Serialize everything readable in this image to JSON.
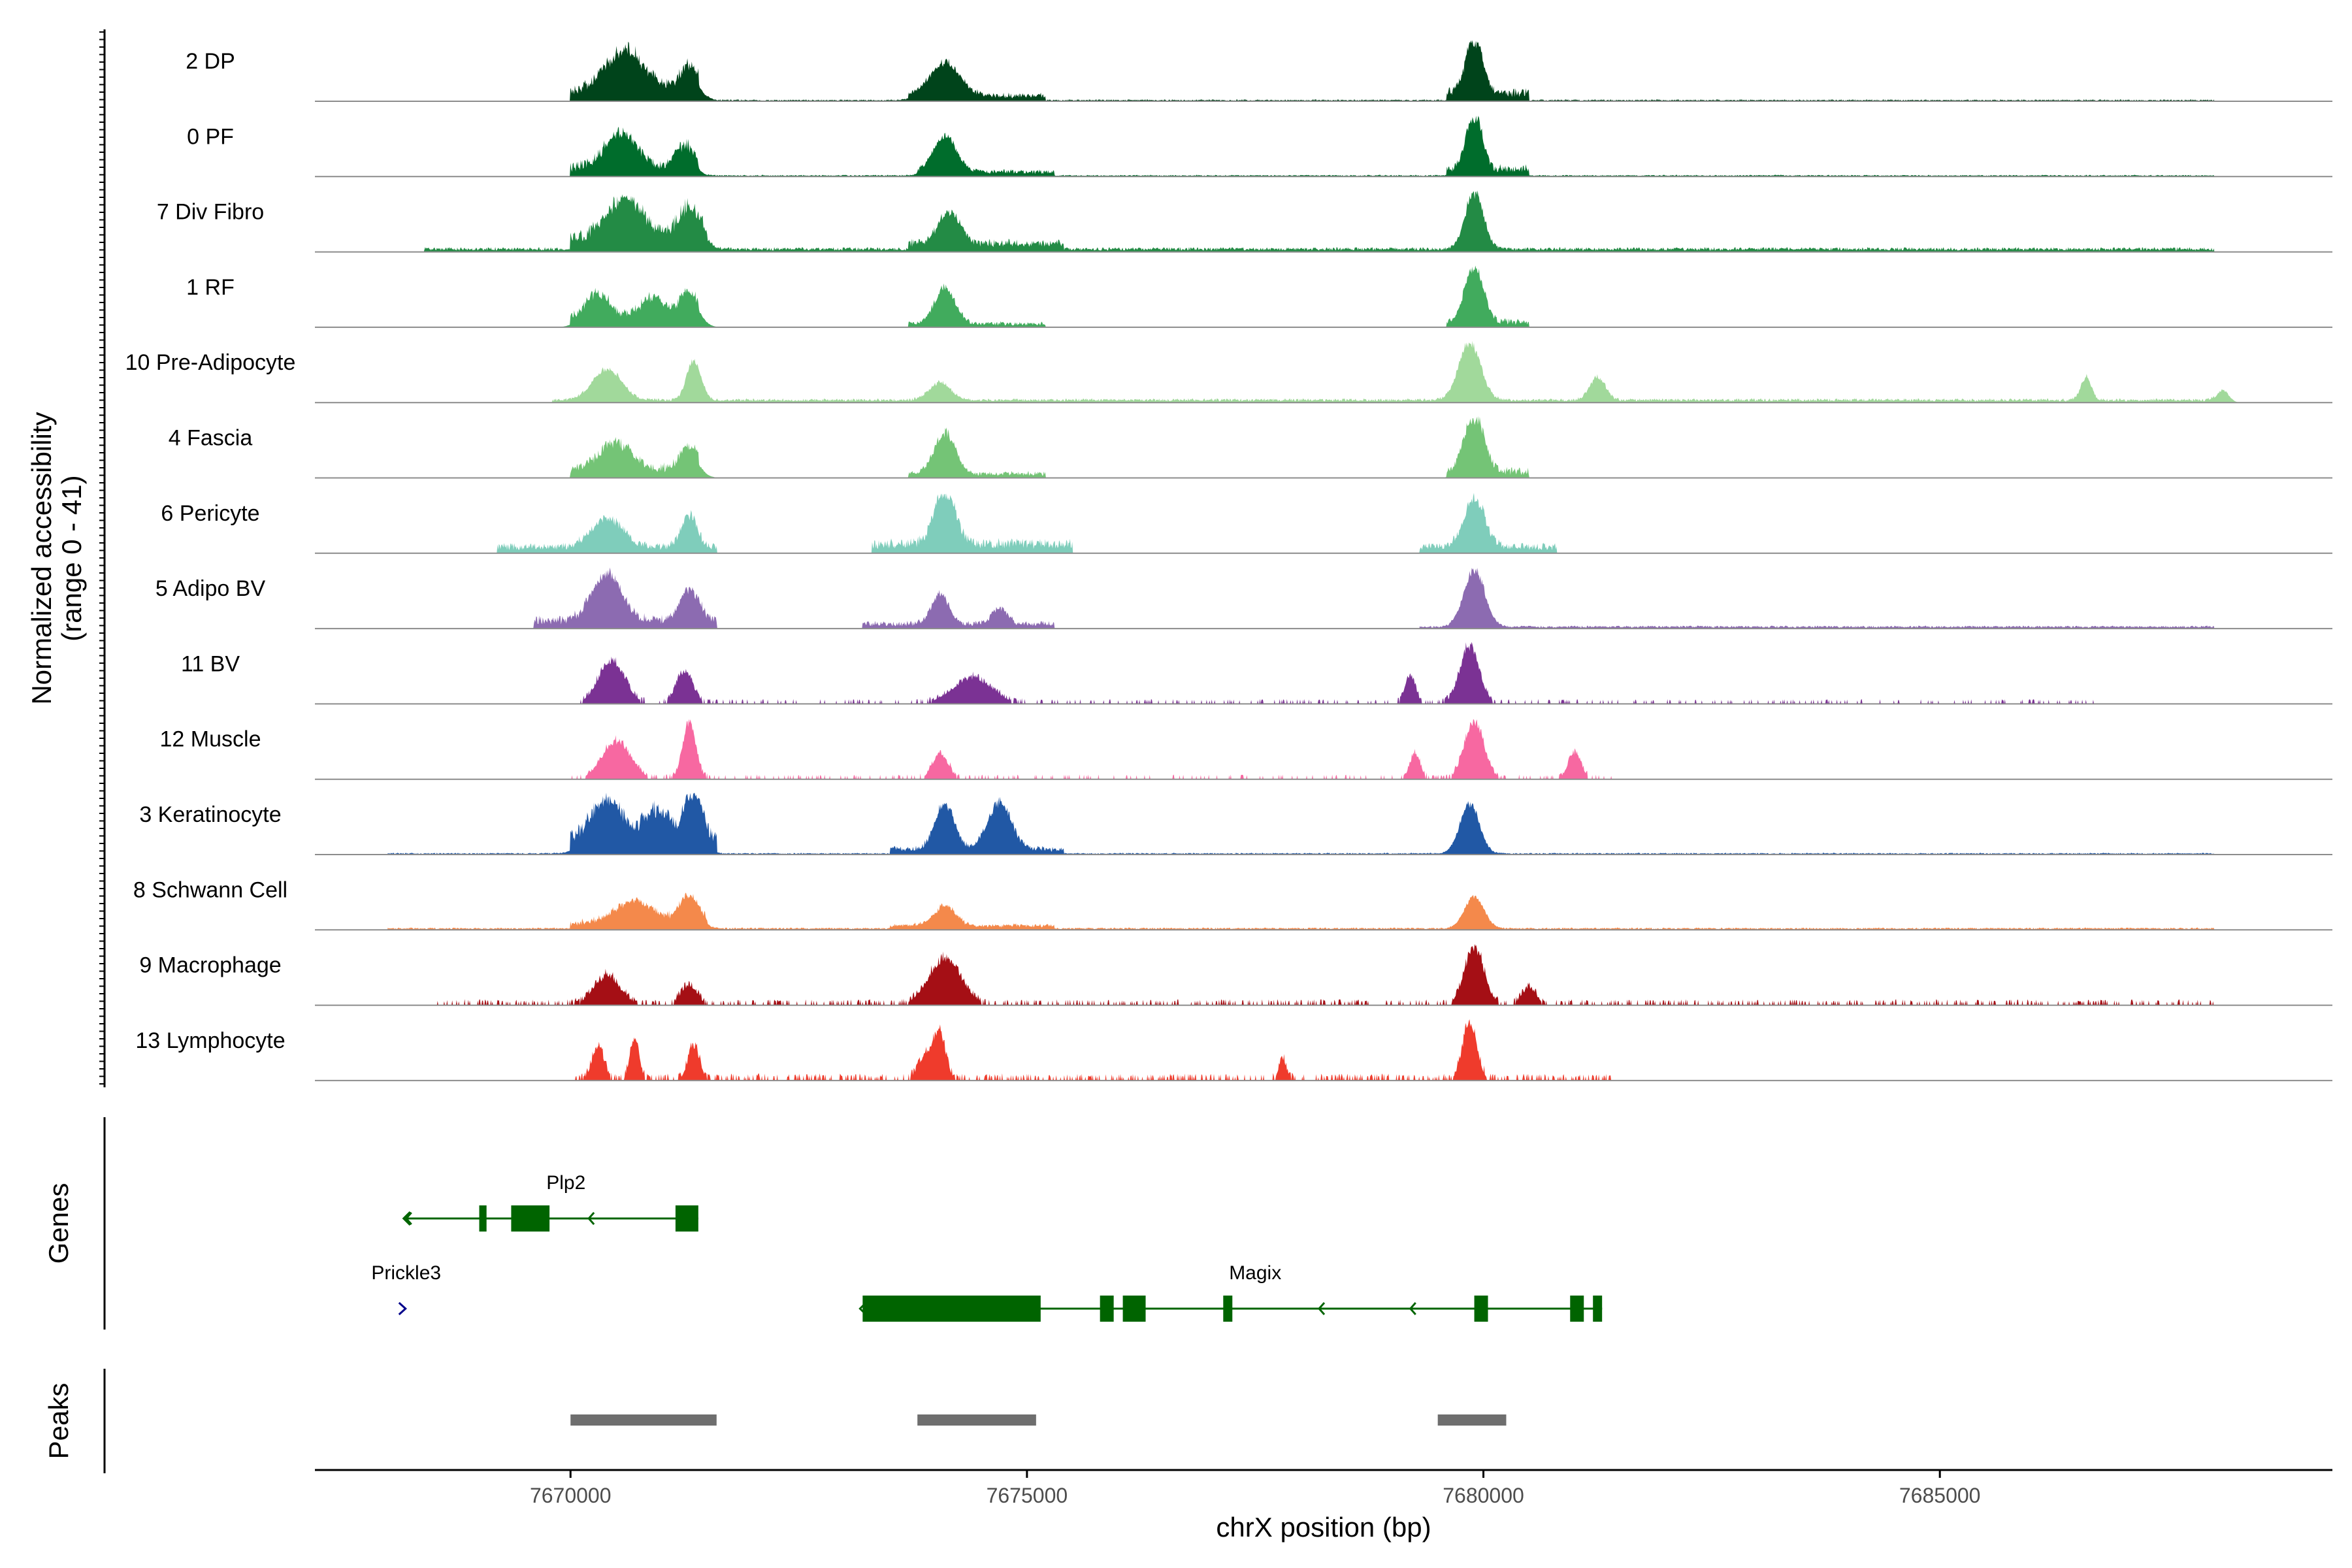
{
  "chart_data": {
    "type": "area",
    "title": "",
    "xlabel": "chrX position (bp)",
    "ylabel_line1": "Normalized accessibility",
    "ylabel_line2": "(range 0 - 41)",
    "genes_label": "Genes",
    "peaks_label": "Peaks",
    "xlim": [
      7667200,
      7689300
    ],
    "ylim": [
      0,
      41
    ],
    "x_ticks": [
      7670000,
      7675000,
      7680000,
      7685000
    ],
    "x_tick_labels": [
      "7670000",
      "7675000",
      "7680000",
      "7685000"
    ],
    "tracks": [
      {
        "name": "2 DP",
        "color": "#00441b",
        "peaks": [
          [
            7670600,
            0.72,
            300
          ],
          [
            7671300,
            0.45,
            150
          ],
          [
            7674100,
            0.58,
            230
          ],
          [
            7679900,
            1.0,
            130
          ]
        ],
        "noise": [
          [
            7670000,
            7671400,
            0.28
          ],
          [
            7673700,
            7675200,
            0.12
          ],
          [
            7679600,
            7680500,
            0.2
          ],
          [
            7671500,
            7688000,
            0.03
          ]
        ]
      },
      {
        "name": "0 PF",
        "color": "#006d2c",
        "peaks": [
          [
            7670550,
            0.6,
            250
          ],
          [
            7671250,
            0.4,
            150
          ],
          [
            7674100,
            0.62,
            180
          ],
          [
            7679900,
            1.0,
            120
          ]
        ],
        "noise": [
          [
            7670000,
            7671400,
            0.25
          ],
          [
            7673800,
            7675300,
            0.1
          ],
          [
            7679600,
            7680500,
            0.18
          ],
          [
            7671500,
            7688000,
            0.03
          ]
        ]
      },
      {
        "name": "7 Div Fibro",
        "color": "#238b45",
        "peaks": [
          [
            7670600,
            0.7,
            280
          ],
          [
            7671300,
            0.55,
            180
          ],
          [
            7674150,
            0.55,
            170
          ],
          [
            7679900,
            1.0,
            140
          ]
        ],
        "noise": [
          [
            7668400,
            7688000,
            0.08
          ],
          [
            7670000,
            7671500,
            0.3
          ],
          [
            7673700,
            7675400,
            0.15
          ]
        ]
      },
      {
        "name": "1 RF",
        "color": "#41ab5d",
        "peaks": [
          [
            7670300,
            0.45,
            200
          ],
          [
            7670900,
            0.38,
            200
          ],
          [
            7671300,
            0.48,
            150
          ],
          [
            7674100,
            0.62,
            160
          ],
          [
            7679900,
            1.0,
            140
          ]
        ],
        "noise": [
          [
            7670000,
            7671400,
            0.22
          ],
          [
            7673700,
            7675200,
            0.1
          ],
          [
            7679600,
            7680500,
            0.15
          ]
        ]
      },
      {
        "name": "10 Pre-Adipocyte",
        "color": "#a1d99b",
        "peaks": [
          [
            7670400,
            0.55,
            220
          ],
          [
            7671350,
            0.7,
            110
          ],
          [
            7674050,
            0.3,
            170
          ],
          [
            7679850,
            1.0,
            170
          ],
          [
            7681250,
            0.4,
            120
          ],
          [
            7686600,
            0.4,
            80
          ],
          [
            7688100,
            0.22,
            90
          ]
        ],
        "noise": [
          [
            7669800,
            7688000,
            0.07
          ]
        ]
      },
      {
        "name": "4 Fascia",
        "color": "#74c476",
        "peaks": [
          [
            7670500,
            0.45,
            260
          ],
          [
            7671300,
            0.38,
            150
          ],
          [
            7674100,
            0.72,
            160
          ],
          [
            7679900,
            1.0,
            150
          ]
        ],
        "noise": [
          [
            7670000,
            7671400,
            0.25
          ],
          [
            7673700,
            7675200,
            0.12
          ],
          [
            7679600,
            7680500,
            0.18
          ]
        ]
      },
      {
        "name": "6 Pericyte",
        "color": "#7fcdbb",
        "peaks": [
          [
            7670400,
            0.5,
            240
          ],
          [
            7671300,
            0.55,
            120
          ],
          [
            7674100,
            1.0,
            160
          ],
          [
            7679900,
            0.85,
            160
          ]
        ],
        "noise": [
          [
            7669200,
            7671600,
            0.18
          ],
          [
            7673300,
            7675500,
            0.25
          ],
          [
            7679300,
            7680800,
            0.18
          ]
        ]
      },
      {
        "name": "5 Adipo BV",
        "color": "#8c6bb1",
        "peaks": [
          [
            7670400,
            0.85,
            230
          ],
          [
            7671300,
            0.55,
            150
          ],
          [
            7674050,
            0.5,
            140
          ],
          [
            7674700,
            0.28,
            120
          ],
          [
            7679900,
            1.0,
            160
          ]
        ],
        "noise": [
          [
            7669600,
            7671600,
            0.22
          ],
          [
            7673200,
            7675300,
            0.13
          ],
          [
            7679300,
            7688000,
            0.05
          ]
        ]
      },
      {
        "name": "11 BV",
        "color": "#7b3294",
        "peaks": [
          [
            7670450,
            0.75,
            200
          ],
          [
            7671250,
            0.55,
            130
          ],
          [
            7674400,
            0.45,
            300
          ],
          [
            7679850,
            1.0,
            150
          ],
          [
            7679200,
            0.5,
            80
          ]
        ],
        "noise": [
          [
            7670100,
            7686700,
            0.08
          ]
        ],
        "sparse": true
      },
      {
        "name": "12 Muscle",
        "color": "#f768a1",
        "peaks": [
          [
            7670500,
            0.65,
            220
          ],
          [
            7671300,
            1.0,
            100
          ],
          [
            7674050,
            0.45,
            120
          ],
          [
            7679900,
            1.0,
            150
          ],
          [
            7679250,
            0.45,
            80
          ],
          [
            7681000,
            0.45,
            100
          ]
        ],
        "noise": [
          [
            7670000,
            7681400,
            0.08
          ]
        ],
        "sparse": true
      },
      {
        "name": "3 Keratinocyte",
        "color": "#2158a5",
        "peaks": [
          [
            7670400,
            0.72,
            250
          ],
          [
            7670950,
            0.55,
            200
          ],
          [
            7671350,
            1.0,
            130
          ],
          [
            7674100,
            0.78,
            150
          ],
          [
            7674700,
            0.82,
            180
          ],
          [
            7679850,
            0.85,
            150
          ]
        ],
        "noise": [
          [
            7668000,
            7688000,
            0.03
          ],
          [
            7670000,
            7671600,
            0.35
          ],
          [
            7673500,
            7675400,
            0.12
          ]
        ]
      },
      {
        "name": "8 Schwann Cell",
        "color": "#f4894b",
        "peaks": [
          [
            7670700,
            0.38,
            300
          ],
          [
            7671300,
            0.48,
            150
          ],
          [
            7674100,
            0.35,
            160
          ],
          [
            7679900,
            0.55,
            150
          ]
        ],
        "noise": [
          [
            7668000,
            7688000,
            0.04
          ],
          [
            7670000,
            7671500,
            0.15
          ],
          [
            7673500,
            7675300,
            0.08
          ]
        ]
      },
      {
        "name": "9 Macrophage",
        "color": "#a50f15",
        "peaks": [
          [
            7670400,
            0.5,
            200
          ],
          [
            7671300,
            0.35,
            120
          ],
          [
            7674100,
            0.8,
            250
          ],
          [
            7679900,
            1.0,
            150
          ],
          [
            7680500,
            0.3,
            110
          ]
        ],
        "noise": [
          [
            7668500,
            7688000,
            0.1
          ]
        ],
        "sparse": true
      },
      {
        "name": "13 Lymphocyte",
        "color": "#ef3b2c",
        "peaks": [
          [
            7670300,
            0.6,
            90
          ],
          [
            7670700,
            0.75,
            70
          ],
          [
            7671350,
            0.6,
            90
          ],
          [
            7673900,
            0.45,
            120
          ],
          [
            7674050,
            0.75,
            90
          ],
          [
            7679850,
            1.0,
            110
          ],
          [
            7677800,
            0.35,
            60
          ]
        ],
        "noise": [
          [
            7670000,
            7681400,
            0.12
          ]
        ],
        "sparse": true
      }
    ],
    "gene_tracks": [
      {
        "name": "Plp2",
        "label_x": 7669950,
        "row": 0,
        "color": "#006400",
        "start": 7668200,
        "end": 7671400,
        "strand": "-",
        "exons": [
          [
            7669000,
            7669080
          ],
          [
            7669350,
            7669770
          ],
          [
            7671150,
            7671400
          ]
        ]
      },
      {
        "name": "Prickle3",
        "label_x": 7668200,
        "row": 1,
        "color": "#00008b",
        "start": 7668150,
        "end": 7668230,
        "strand": "+",
        "exons": []
      },
      {
        "name": "Magix",
        "label_x": 7677500,
        "row": 1,
        "color": "#006400",
        "start": 7673200,
        "end": 7681300,
        "strand": "-",
        "exons": [
          [
            7673200,
            7675150
          ],
          [
            7675800,
            7675950
          ],
          [
            7676050,
            7676300
          ],
          [
            7677150,
            7677250
          ],
          [
            7679900,
            7680050
          ],
          [
            7680950,
            7681100
          ],
          [
            7681200,
            7681300
          ]
        ]
      }
    ],
    "peak_regions": [
      [
        7670000,
        7671600
      ],
      [
        7673800,
        7675100
      ],
      [
        7679500,
        7680250
      ]
    ]
  }
}
